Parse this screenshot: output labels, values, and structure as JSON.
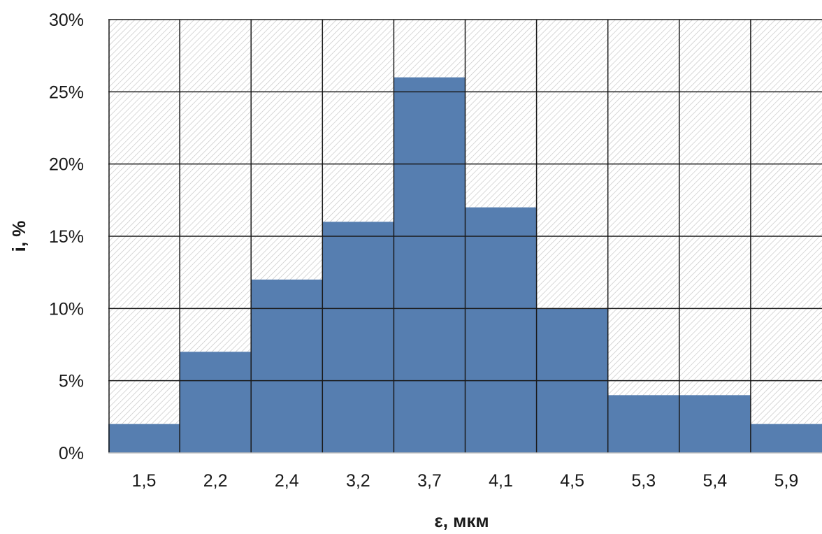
{
  "chart_data": {
    "type": "bar",
    "categories": [
      "1,5",
      "2,2",
      "2,4",
      "3,2",
      "3,7",
      "4,1",
      "4,5",
      "5,3",
      "5,4",
      "5,9"
    ],
    "values": [
      2,
      7,
      12,
      16,
      26,
      17,
      10,
      4,
      4,
      2
    ],
    "xlabel": "ε, мкм",
    "ylabel": "i, %",
    "ylim": [
      0,
      30
    ],
    "yticks": [
      0,
      5,
      10,
      15,
      20,
      25,
      30
    ],
    "ytick_labels": [
      "0%",
      "5%",
      "10%",
      "15%",
      "20%",
      "25%",
      "30%"
    ],
    "grid": true,
    "bar_color": "#567eb0",
    "background_pattern": "diagonal-hatch",
    "background_pattern_color": "#b8b8b8"
  }
}
